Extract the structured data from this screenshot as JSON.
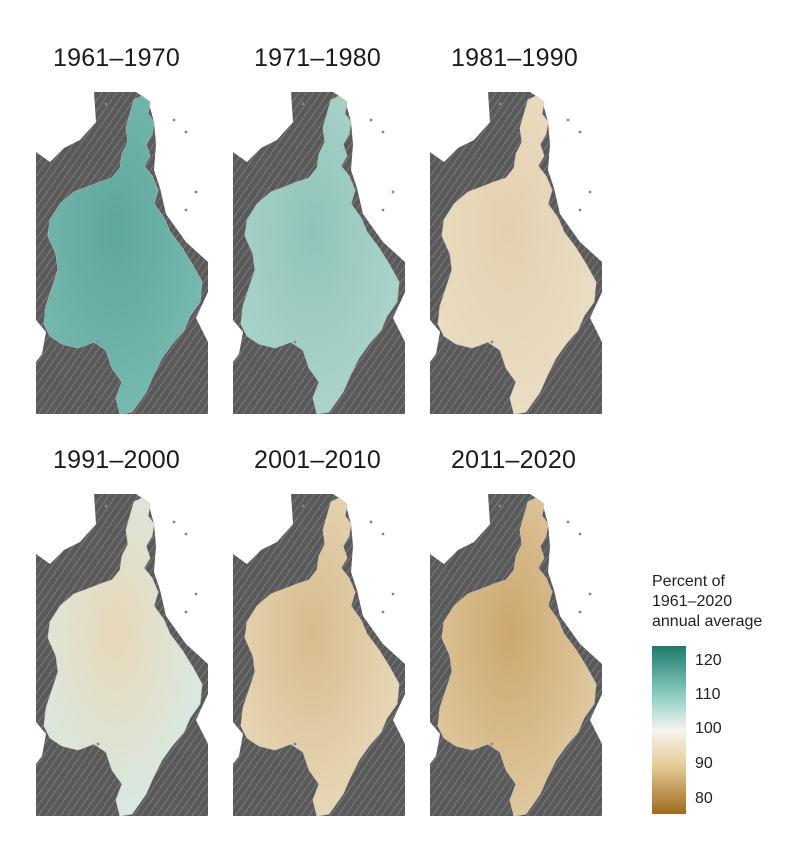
{
  "panels": [
    {
      "label": "1961–1970",
      "tint": "#4ea79b",
      "inner": "#2e8f82",
      "tint_opacity": 0.75
    },
    {
      "label": "1971–1980",
      "tint": "#7fc2b6",
      "inner": "#4fa899",
      "tint_opacity": 0.6
    },
    {
      "label": "1981–1990",
      "tint": "#e9d6b3",
      "inner": "#dfc394",
      "tint_opacity": 0.7
    },
    {
      "label": "1991–2000",
      "tint": "#cfe7e1",
      "inner": "#e5cea1",
      "tint_opacity": 0.7
    },
    {
      "label": "2001–2010",
      "tint": "#e6d0a6",
      "inner": "#cfab6f",
      "tint_opacity": 0.75
    },
    {
      "label": "2011–2020",
      "tint": "#dcc08e",
      "inner": "#c39650",
      "tint_opacity": 0.8
    }
  ],
  "legend": {
    "title": [
      "Percent of",
      "1961–2020",
      "annual average"
    ],
    "ticks": [
      "120",
      "110",
      "100",
      "90",
      "80"
    ],
    "colors": {
      "high": "#1f7a6c",
      "mid": "#f5f4ef",
      "low": "#a06a1e"
    }
  },
  "colors": {
    "land": "#5a5a5a",
    "water": "#ffffff"
  }
}
